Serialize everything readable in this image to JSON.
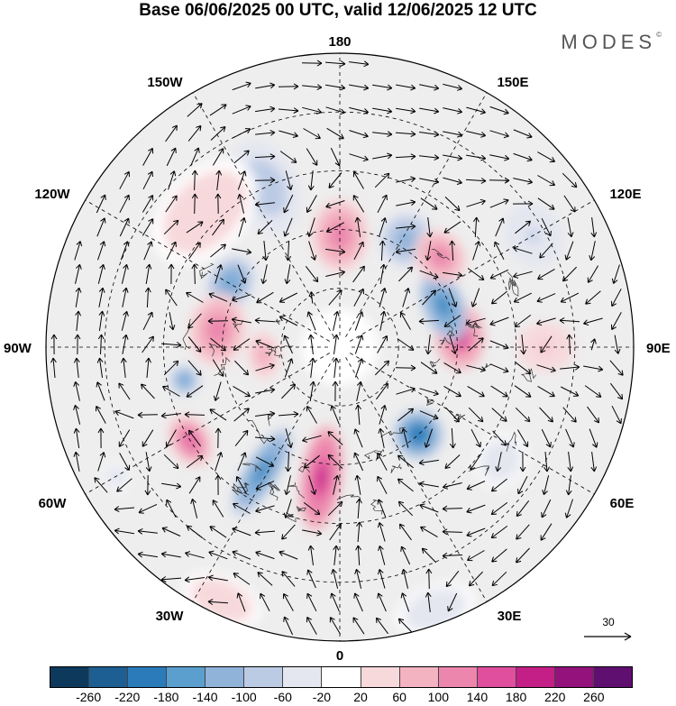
{
  "title": "Base 06/06/2025 00 UTC, valid 12/06/2025 12 UTC",
  "brand": "MODES",
  "brand_mark": "©",
  "longitude_labels": {
    "n": "180",
    "s": "0",
    "w": "90W",
    "e": "90E",
    "nw1": "150W",
    "nw2": "120W",
    "ne1": "150E",
    "ne2": "120E",
    "sw1": "60W",
    "sw2": "30W",
    "se1": "60E",
    "se2": "30E"
  },
  "reference_vector": {
    "label": "30"
  },
  "legend": {
    "ticks": [
      "-260",
      "-220",
      "-180",
      "-140",
      "-100",
      "-60",
      "-20",
      "20",
      "60",
      "100",
      "140",
      "180",
      "220",
      "260"
    ],
    "colors": [
      "#0d3a5c",
      "#1d5f92",
      "#2b7bba",
      "#5b9fcf",
      "#8fb3d9",
      "#bccbe4",
      "#e4e6f0",
      "#ffffff",
      "#f7d9dc",
      "#f3b3c0",
      "#ec86ad",
      "#df4f9d",
      "#c41f86",
      "#93127c",
      "#5f0f6f"
    ]
  },
  "anomalies": [
    {
      "lon": 205,
      "r": 0.6,
      "v": -100,
      "sx": 0.08,
      "sy": 0.12
    },
    {
      "lon": 225,
      "r": 0.65,
      "v": 40,
      "sx": 0.15,
      "sy": 0.1
    },
    {
      "lon": 180,
      "r": 0.38,
      "v": 120,
      "sx": 0.07,
      "sy": 0.09
    },
    {
      "lon": 148,
      "r": 0.43,
      "v": -120,
      "sx": 0.07,
      "sy": 0.07
    },
    {
      "lon": 240,
      "r": 0.43,
      "v": -150,
      "sx": 0.08,
      "sy": 0.06
    },
    {
      "lon": 262,
      "r": 0.42,
      "v": 120,
      "sx": 0.09,
      "sy": 0.07
    },
    {
      "lon": 276,
      "r": 0.26,
      "v": 90,
      "sx": 0.06,
      "sy": 0.04
    },
    {
      "lon": 282,
      "r": 0.54,
      "v": -150,
      "sx": 0.04,
      "sy": 0.04
    },
    {
      "lon": 302,
      "r": 0.6,
      "v": 150,
      "sx": 0.07,
      "sy": 0.05
    },
    {
      "lon": 328,
      "r": 0.5,
      "v": -200,
      "sx": 0.04,
      "sy": 0.12
    },
    {
      "lon": 352,
      "r": 0.45,
      "v": 200,
      "sx": 0.05,
      "sy": 0.13
    },
    {
      "lon": 42,
      "r": 0.4,
      "v": -220,
      "sx": 0.06,
      "sy": 0.06
    },
    {
      "lon": 95,
      "r": 0.41,
      "v": 180,
      "sx": 0.08,
      "sy": 0.06
    },
    {
      "lon": 112,
      "r": 0.38,
      "v": -200,
      "sx": 0.09,
      "sy": 0.05
    },
    {
      "lon": 132,
      "r": 0.46,
      "v": 120,
      "sx": 0.07,
      "sy": 0.06
    },
    {
      "lon": 120,
      "r": 0.76,
      "v": -70,
      "sx": 0.08,
      "sy": 0.07
    },
    {
      "lon": 90,
      "r": 0.7,
      "v": 60,
      "sx": 0.06,
      "sy": 0.07
    },
    {
      "lon": 55,
      "r": 0.67,
      "v": -50,
      "sx": 0.07,
      "sy": 0.06
    },
    {
      "lon": 335,
      "r": 0.95,
      "v": 40,
      "sx": 0.1,
      "sy": 0.06
    },
    {
      "lon": 20,
      "r": 0.95,
      "v": -50,
      "sx": 0.1,
      "sy": 0.06
    },
    {
      "lon": 300,
      "r": 0.88,
      "v": -40,
      "sx": 0.04,
      "sy": 0.03
    }
  ]
}
